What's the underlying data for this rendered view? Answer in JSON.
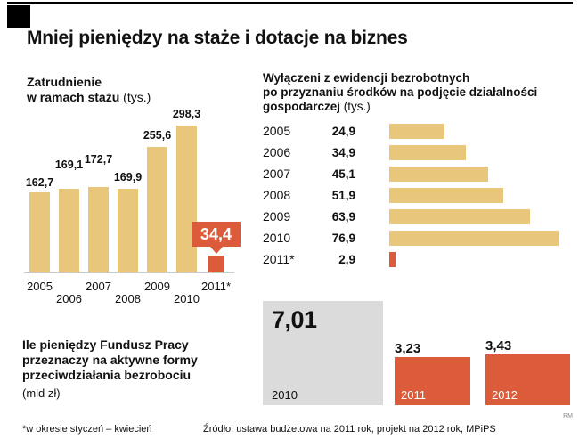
{
  "header": {
    "title": "Mniej pieniędzy na staże i dotacje na biznes"
  },
  "colors": {
    "bar_tan": "#e8c77d",
    "accent_red": "#dc5b3a",
    "block_gray": "#dbdbdb",
    "text_black": "#111111"
  },
  "chart_data": [
    {
      "type": "bar",
      "title": "Zatrudnienie w ramach stażu",
      "title_lines": [
        "Zatrudnienie",
        "w ramach stażu"
      ],
      "unit": "(tys.)",
      "categories": [
        "2005",
        "2006",
        "2007",
        "2008",
        "2009",
        "2010",
        "2011*"
      ],
      "values": [
        162.7,
        169.1,
        172.7,
        169.9,
        255.6,
        298.3,
        34.4
      ],
      "labels": [
        "162,7",
        "169,1",
        "172,7",
        "169,9",
        "255,6",
        "298,3",
        "34,4"
      ],
      "highlight_index": 6,
      "highlight_style": "red-bar-with-callout",
      "ylim": [
        0,
        300
      ],
      "grid": false,
      "legend": "none"
    },
    {
      "type": "bar-horizontal",
      "title": "Wyłączeni z ewidencji bezrobotnych po przyznaniu środków na podjęcie działalności gospodarczej",
      "title_lines": [
        "Wyłączeni z ewidencji bezrobotnych",
        "po przyznaniu środków na podjęcie działalności",
        "gospodarczej"
      ],
      "unit": "(tys.)",
      "categories": [
        "2005",
        "2006",
        "2007",
        "2008",
        "2009",
        "2010",
        "2011*"
      ],
      "values": [
        24.9,
        34.9,
        45.1,
        51.9,
        63.9,
        76.9,
        2.9
      ],
      "labels": [
        "24,9",
        "34,9",
        "45,1",
        "51,9",
        "63,9",
        "76,9",
        "2,9"
      ],
      "highlight_index": 6,
      "xlim": [
        0,
        80
      ],
      "grid": false,
      "legend": "none"
    },
    {
      "type": "bar",
      "title": "Ile pieniędzy Fundusz Pracy przeznaczy na aktywne formy przeciwdziałania bezrobociu",
      "title_lines": [
        "Ile pieniędzy Fundusz Pracy",
        "przeznaczy na aktywne formy",
        "przeciwdziałania bezrobociu"
      ],
      "unit": "(mld zł)",
      "categories": [
        "2010",
        "2011",
        "2012"
      ],
      "values": [
        7.01,
        3.23,
        3.43
      ],
      "labels": [
        "7,01",
        "3,23",
        "3,43"
      ],
      "highlight_index": 0,
      "ylim": [
        0,
        7.5
      ],
      "grid": false,
      "legend": "none"
    }
  ],
  "footer": {
    "footnote": "*w okresie styczeń – kwiecień",
    "source": "Źródło: ustawa budżetowa na 2011 rok, projekt na 2012 rok, MPiPS",
    "credit": "RM"
  }
}
